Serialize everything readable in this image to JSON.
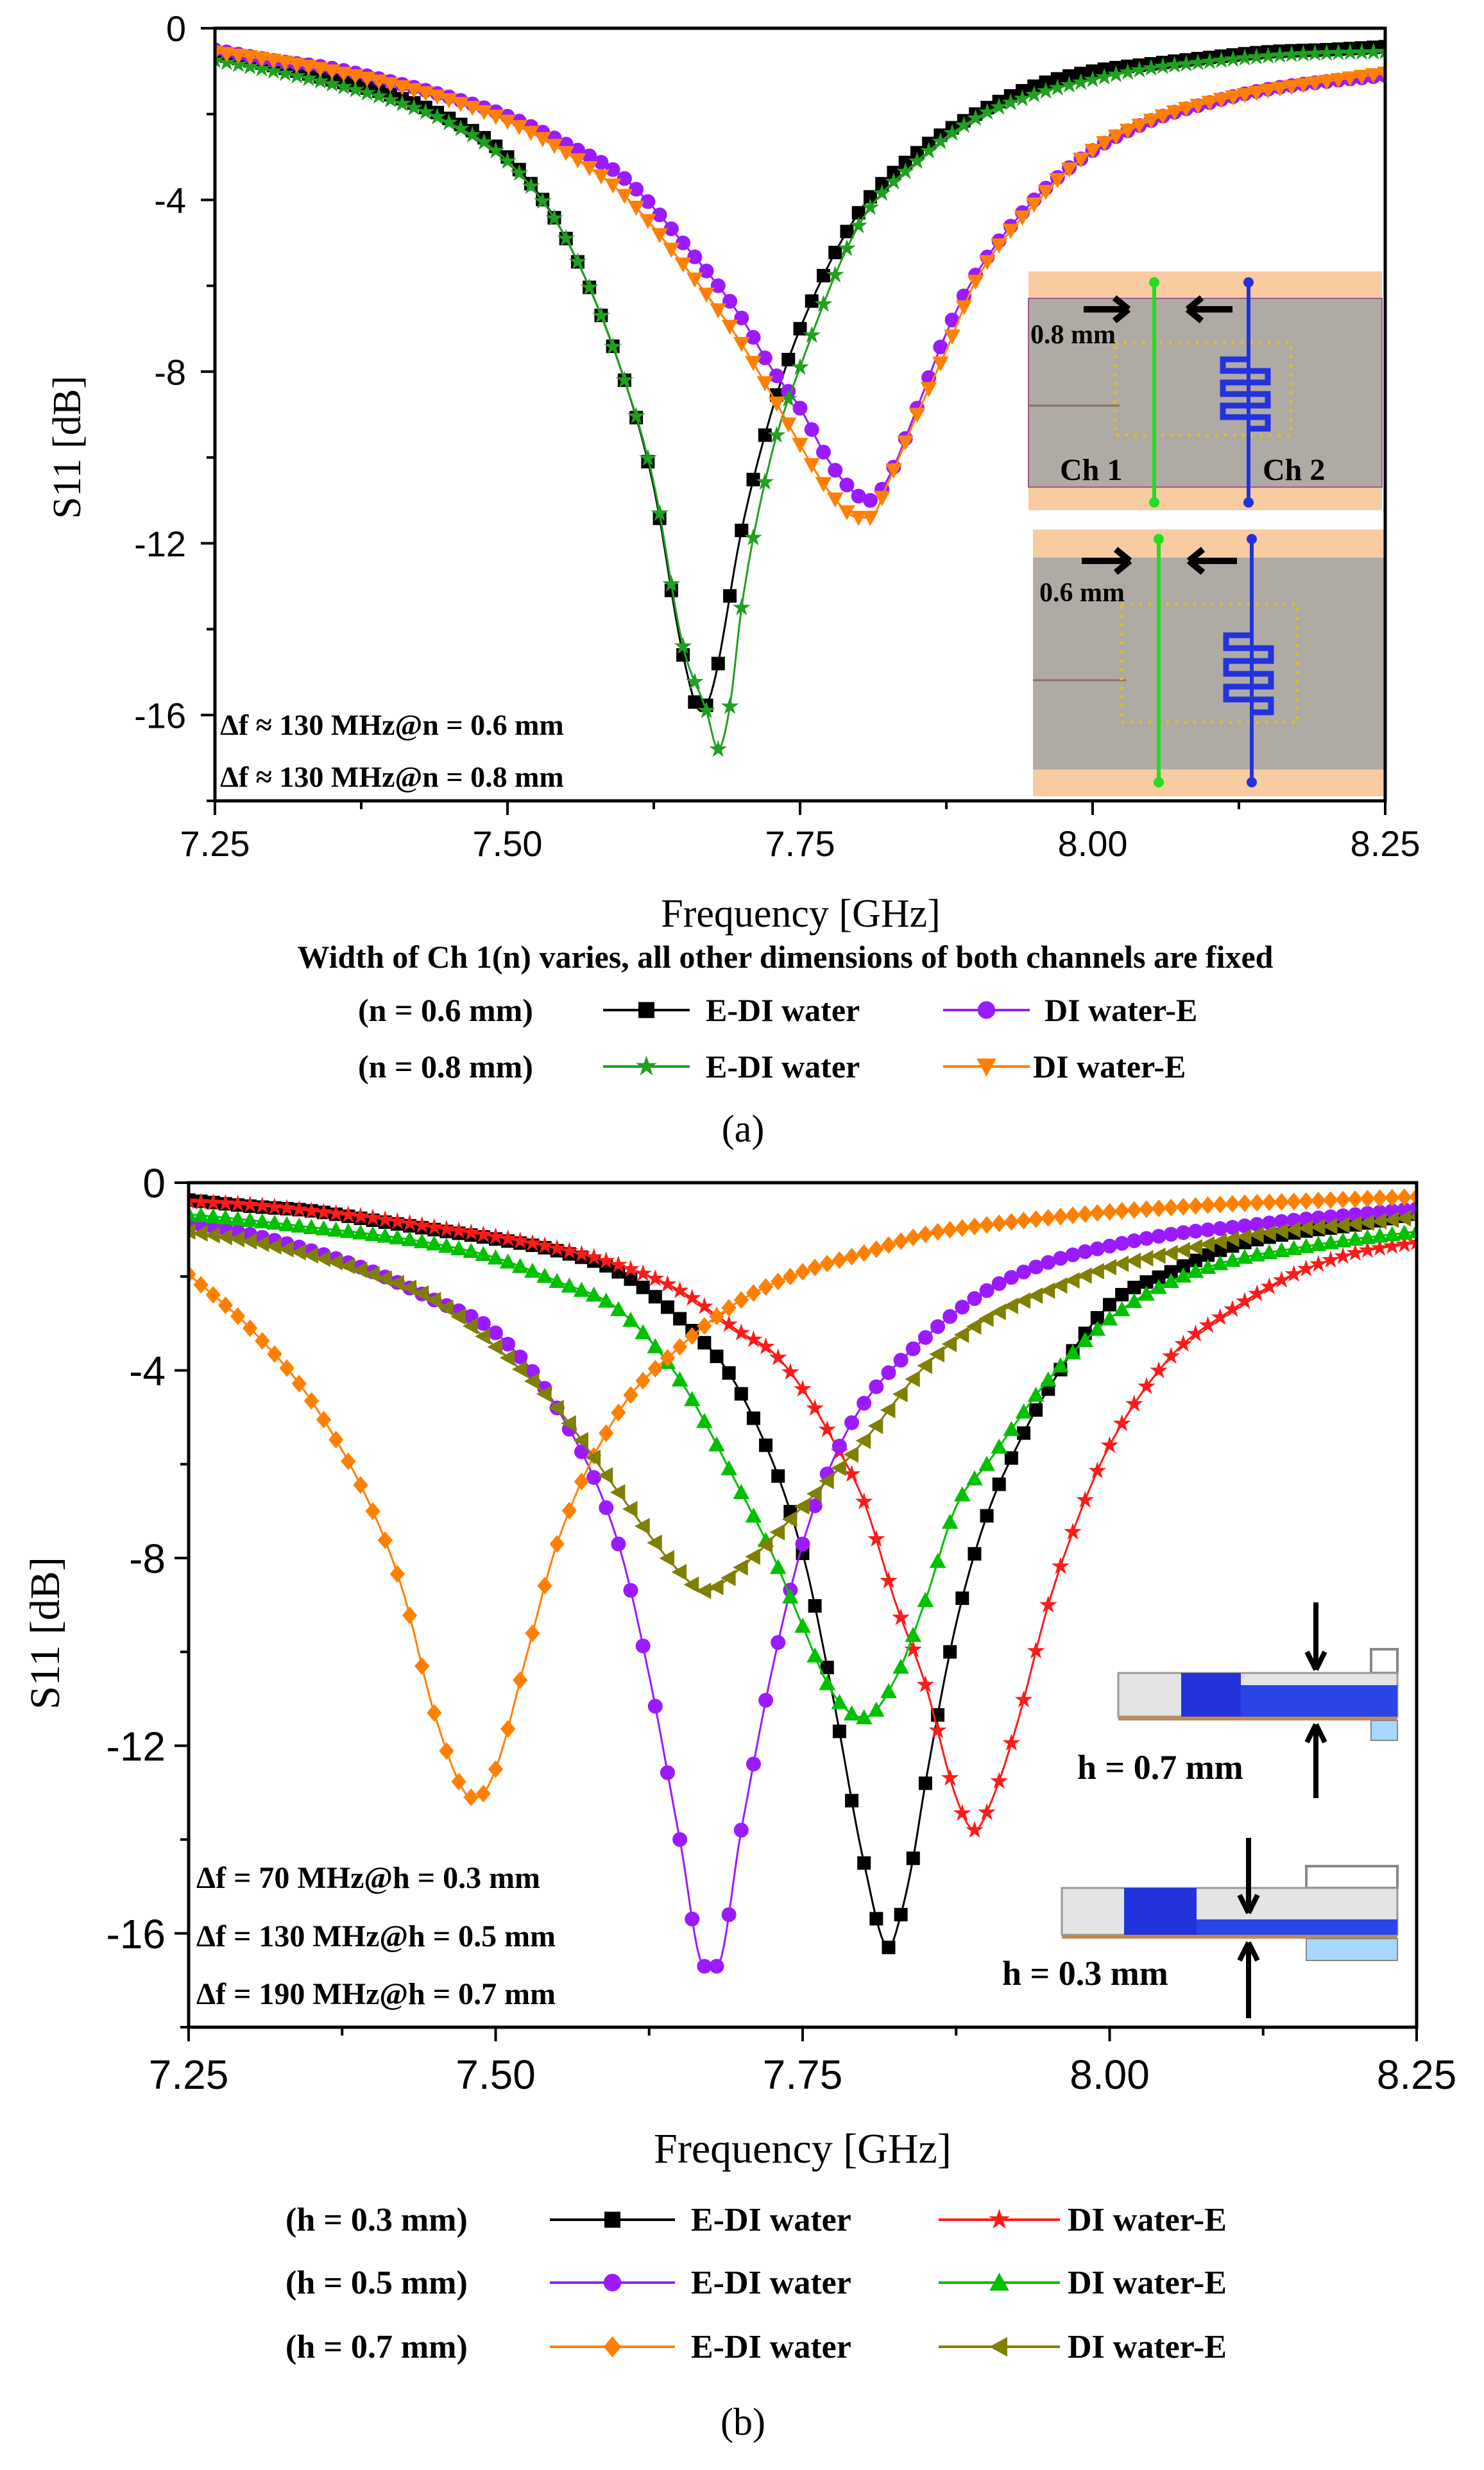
{
  "chart_data": [
    {
      "panel": "(a)",
      "type": "line",
      "xlabel": "Frequency [GHz]",
      "ylabel": "S11 [dB]",
      "xlim": [
        7.25,
        8.25
      ],
      "ylim": [
        -18,
        0
      ],
      "xticks": [
        "7.25",
        "7.50",
        "7.75",
        "8.00",
        "8.25"
      ],
      "yticks": [
        "0",
        "-4",
        "-8",
        "-12",
        "-16"
      ],
      "caption": "Width of Ch 1(n) varies, all other dimensions of both channels are fixed",
      "annotations": [
        "Δf ≈ 130 MHz@n = 0.6 mm",
        "Δf ≈ 130 MHz@n = 0.8 mm"
      ],
      "legend_groups": [
        "(n = 0.6 mm)",
        "(n = 0.8 mm)"
      ],
      "inset_labels": {
        "top_width": "0.8 mm",
        "bottom_width": "0.6 mm",
        "ch1": "Ch 1",
        "ch2": "Ch 2"
      },
      "series": [
        {
          "name": "E-DI water",
          "group": 0,
          "color": "#000000",
          "marker": "square",
          "x": [
            7.25,
            7.3,
            7.35,
            7.4,
            7.45,
            7.5,
            7.55,
            7.6,
            7.625,
            7.65,
            7.665,
            7.675,
            7.7,
            7.725,
            7.75,
            7.8,
            7.85,
            7.9,
            7.95,
            8.0,
            8.05,
            8.1,
            8.15,
            8.2,
            8.25
          ],
          "y": [
            -0.6,
            -0.87,
            -1.2,
            -1.55,
            -2.1,
            -3.0,
            -4.9,
            -8.2,
            -10.7,
            -14.6,
            -15.9,
            -15.4,
            -11.7,
            -9.0,
            -7.0,
            -4.3,
            -2.9,
            -2.0,
            -1.35,
            -1.0,
            -0.83,
            -0.68,
            -0.55,
            -0.5,
            -0.43
          ]
        },
        {
          "name": "DI water-E",
          "group": 0,
          "color": "#9b1aff",
          "marker": "circle",
          "x": [
            7.25,
            7.3,
            7.35,
            7.4,
            7.45,
            7.5,
            7.55,
            7.6,
            7.65,
            7.7,
            7.725,
            7.75,
            7.775,
            7.8,
            7.81,
            7.825,
            7.85,
            7.875,
            7.9,
            7.95,
            8.0,
            8.05,
            8.1,
            8.15,
            8.2,
            8.25
          ],
          "y": [
            -0.5,
            -0.75,
            -0.93,
            -1.24,
            -1.6,
            -2.05,
            -2.7,
            -3.5,
            -5.0,
            -6.75,
            -7.9,
            -8.85,
            -10.1,
            -10.9,
            -11.0,
            -10.5,
            -8.85,
            -7.1,
            -5.75,
            -4.0,
            -2.85,
            -2.15,
            -1.73,
            -1.42,
            -1.24,
            -1.1
          ]
        },
        {
          "name": "E-DI water",
          "group": 1,
          "color": "#1fa01f",
          "marker": "star",
          "x": [
            7.25,
            7.3,
            7.35,
            7.4,
            7.45,
            7.5,
            7.55,
            7.6,
            7.625,
            7.65,
            7.67,
            7.68,
            7.69,
            7.7,
            7.725,
            7.75,
            7.8,
            7.85,
            7.9,
            7.95,
            8.0,
            8.05,
            8.1,
            8.15,
            8.2,
            8.25
          ],
          "y": [
            -0.75,
            -1.0,
            -1.3,
            -1.67,
            -2.2,
            -3.1,
            -4.9,
            -8.2,
            -10.6,
            -14.4,
            -15.9,
            -16.8,
            -15.8,
            -13.5,
            -10.0,
            -7.9,
            -4.6,
            -3.1,
            -2.1,
            -1.55,
            -1.2,
            -0.93,
            -0.78,
            -0.65,
            -0.58,
            -0.55
          ]
        },
        {
          "name": "DI water-E",
          "group": 1,
          "color": "#ff8000",
          "marker": "triangle-down",
          "x": [
            7.25,
            7.3,
            7.35,
            7.4,
            7.45,
            7.5,
            7.55,
            7.6,
            7.65,
            7.7,
            7.725,
            7.75,
            7.775,
            7.8,
            7.81,
            7.825,
            7.85,
            7.875,
            7.9,
            7.95,
            8.0,
            8.05,
            8.1,
            8.15,
            8.2,
            8.25
          ],
          "y": [
            -0.56,
            -0.75,
            -1.0,
            -1.3,
            -1.67,
            -2.17,
            -2.9,
            -3.9,
            -5.5,
            -7.35,
            -8.5,
            -9.7,
            -10.8,
            -11.4,
            -11.4,
            -10.6,
            -9.0,
            -7.5,
            -5.9,
            -4.1,
            -2.85,
            -2.15,
            -1.73,
            -1.45,
            -1.24,
            -1.05
          ]
        }
      ]
    },
    {
      "panel": "(b)",
      "type": "line",
      "xlabel": "Frequency [GHz]",
      "ylabel": "S11 [dB]",
      "xlim": [
        7.25,
        8.25
      ],
      "ylim": [
        -18,
        0
      ],
      "xticks": [
        "7.25",
        "7.50",
        "7.75",
        "8.00",
        "8.25"
      ],
      "yticks": [
        "0",
        "-4",
        "-8",
        "-12",
        "-16"
      ],
      "annotations": [
        "Δf = 70 MHz@h = 0.3 mm",
        "Δf = 130 MHz@h = 0.5 mm",
        "Δf = 190 MHz@h = 0.7 mm"
      ],
      "legend_groups": [
        "(h = 0.3 mm)",
        "(h = 0.5 mm)",
        "(h = 0.7 mm)"
      ],
      "inset_labels": {
        "top": "h = 0.7 mm",
        "bottom": "h = 0.3 mm"
      },
      "series": [
        {
          "name": "E-DI water",
          "group": 0,
          "color": "#000000",
          "marker": "square",
          "x": [
            7.25,
            7.3,
            7.35,
            7.4,
            7.45,
            7.5,
            7.55,
            7.6,
            7.65,
            7.7,
            7.75,
            7.775,
            7.8,
            7.82,
            7.83,
            7.84,
            7.85,
            7.875,
            7.9,
            7.925,
            7.95,
            8.0,
            8.05,
            8.1,
            8.15,
            8.2,
            8.25
          ],
          "y": [
            -0.37,
            -0.5,
            -0.6,
            -0.8,
            -1.0,
            -1.2,
            -1.45,
            -1.9,
            -2.9,
            -4.5,
            -7.9,
            -11.0,
            -14.5,
            -16.3,
            -15.6,
            -14.4,
            -12.8,
            -9.4,
            -7.1,
            -5.6,
            -4.4,
            -2.6,
            -1.9,
            -1.35,
            -1.07,
            -0.9,
            -0.67
          ]
        },
        {
          "name": "DI water-E",
          "group": 0,
          "color": "#ff1a1a",
          "marker": "star",
          "x": [
            7.25,
            7.3,
            7.35,
            7.4,
            7.45,
            7.5,
            7.55,
            7.6,
            7.65,
            7.7,
            7.725,
            7.75,
            7.775,
            7.8,
            7.825,
            7.85,
            7.875,
            7.89,
            7.905,
            7.925,
            7.95,
            7.975,
            8.0,
            8.05,
            8.1,
            8.15,
            8.2,
            8.25
          ],
          "y": [
            -0.4,
            -0.47,
            -0.6,
            -0.75,
            -0.95,
            -1.15,
            -1.4,
            -1.75,
            -2.3,
            -3.2,
            -3.6,
            -4.4,
            -5.5,
            -6.8,
            -8.9,
            -10.7,
            -13.1,
            -13.8,
            -13.1,
            -11.5,
            -9.0,
            -7.1,
            -5.6,
            -3.7,
            -2.7,
            -1.95,
            -1.5,
            -1.28
          ]
        },
        {
          "name": "E-DI water",
          "group": 1,
          "color": "#9b1aff",
          "marker": "circle",
          "x": [
            7.25,
            7.3,
            7.35,
            7.4,
            7.45,
            7.5,
            7.55,
            7.6,
            7.625,
            7.65,
            7.67,
            7.68,
            7.7,
            7.725,
            7.75,
            7.775,
            7.8,
            7.85,
            7.9,
            7.95,
            8.0,
            8.05,
            8.1,
            8.15,
            8.2,
            8.25
          ],
          "y": [
            -0.85,
            -1.1,
            -1.45,
            -1.9,
            -2.5,
            -3.2,
            -4.8,
            -7.7,
            -10.5,
            -14.0,
            -16.7,
            -16.7,
            -13.8,
            -10.4,
            -7.7,
            -5.9,
            -4.7,
            -3.3,
            -2.3,
            -1.7,
            -1.35,
            -1.1,
            -0.95,
            -0.8,
            -0.68,
            -0.55
          ]
        },
        {
          "name": "DI water-E",
          "group": 1,
          "color": "#00c000",
          "marker": "triangle-up",
          "x": [
            7.25,
            7.3,
            7.35,
            7.4,
            7.45,
            7.5,
            7.55,
            7.6,
            7.65,
            7.7,
            7.725,
            7.75,
            7.775,
            7.8,
            7.825,
            7.85,
            7.875,
            7.9,
            7.95,
            8.0,
            8.05,
            8.1,
            8.15,
            8.2,
            8.25
          ],
          "y": [
            -0.67,
            -0.8,
            -0.95,
            -1.1,
            -1.3,
            -1.6,
            -2.1,
            -2.7,
            -4.2,
            -6.6,
            -7.9,
            -9.45,
            -10.9,
            -11.4,
            -10.6,
            -8.9,
            -6.9,
            -6.0,
            -4.2,
            -2.9,
            -2.1,
            -1.65,
            -1.4,
            -1.2,
            -1.04
          ]
        },
        {
          "name": "E-DI water",
          "group": 2,
          "color": "#ff8000",
          "marker": "diamond",
          "x": [
            7.25,
            7.3,
            7.35,
            7.4,
            7.425,
            7.45,
            7.475,
            7.485,
            7.5,
            7.525,
            7.55,
            7.6,
            7.65,
            7.7,
            7.75,
            7.8,
            7.85,
            7.9,
            7.95,
            8.0,
            8.05,
            8.1,
            8.15,
            8.2,
            8.25
          ],
          "y": [
            -1.95,
            -3.1,
            -4.65,
            -7.0,
            -8.75,
            -11.3,
            -13.0,
            -13.1,
            -12.5,
            -10.1,
            -7.7,
            -4.9,
            -3.5,
            -2.5,
            -1.9,
            -1.5,
            -1.1,
            -0.9,
            -0.75,
            -0.62,
            -0.53,
            -0.45,
            -0.4,
            -0.35,
            -0.3
          ]
        },
        {
          "name": "DI water-E",
          "group": 2,
          "color": "#808000",
          "marker": "triangle-left",
          "x": [
            7.25,
            7.3,
            7.35,
            7.4,
            7.45,
            7.5,
            7.55,
            7.6,
            7.65,
            7.67,
            7.7,
            7.75,
            7.8,
            7.85,
            7.9,
            7.95,
            8.0,
            8.05,
            8.1,
            8.15,
            8.2,
            8.25
          ],
          "y": [
            -1.04,
            -1.25,
            -1.55,
            -1.95,
            -2.5,
            -3.5,
            -4.8,
            -6.6,
            -8.3,
            -8.7,
            -8.2,
            -6.9,
            -5.5,
            -3.9,
            -2.9,
            -2.3,
            -1.8,
            -1.5,
            -1.2,
            -1.0,
            -0.88,
            -0.73
          ]
        }
      ]
    }
  ]
}
